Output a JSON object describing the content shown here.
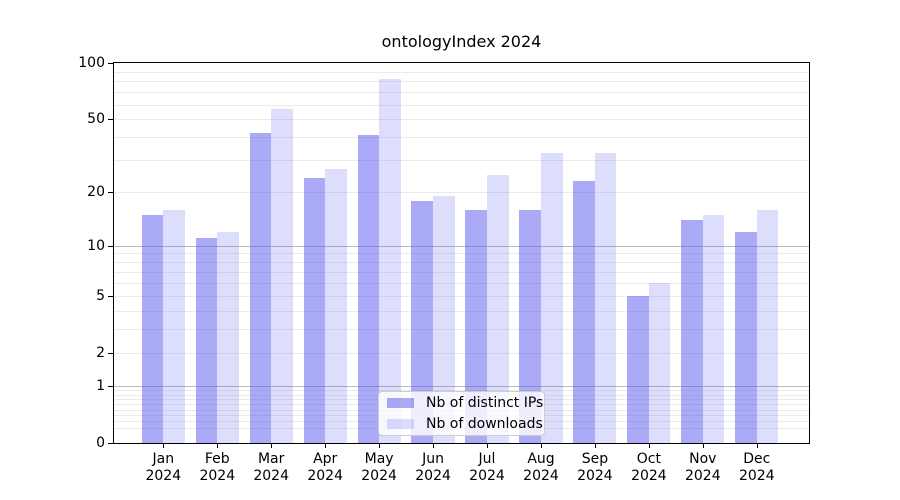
{
  "chart_data": {
    "type": "bar",
    "title": "ontologyIndex 2024",
    "categories": [
      "Jan",
      "Feb",
      "Mar",
      "Apr",
      "May",
      "Jun",
      "Jul",
      "Aug",
      "Sep",
      "Oct",
      "Nov",
      "Dec"
    ],
    "year_label": "2024",
    "series": [
      {
        "key": "distinct_ips",
        "name": "Nb of distinct IPs",
        "color": "rgba(85,85,238,0.5)",
        "color_hex_on_white": "#aaaaf6",
        "values": [
          15,
          11,
          42,
          24,
          41,
          18,
          16,
          16,
          23,
          5,
          14,
          12
        ]
      },
      {
        "key": "downloads",
        "name": "Nb of downloads",
        "color": "rgba(85,85,238,0.2)",
        "color_hex_on_white": "#ddddfb",
        "values": [
          16,
          12,
          57,
          27,
          82,
          19,
          25,
          33,
          33,
          6,
          15,
          16
        ]
      }
    ],
    "y_axis": {
      "scale": "log1p",
      "lim": [
        0,
        100
      ],
      "tick_labels": [
        "0",
        "1",
        "2",
        "5",
        "10",
        "20",
        "50",
        "100"
      ],
      "ticks": [
        0,
        1,
        2,
        5,
        10,
        20,
        50,
        100
      ],
      "major_grid_values": [
        1,
        10
      ],
      "light_grid_values": [
        2,
        5,
        20,
        50
      ],
      "minor_grid_values": [
        0.2,
        0.3,
        0.4,
        0.5,
        0.6,
        0.7,
        0.8,
        0.9,
        3,
        4,
        6,
        7,
        8,
        9,
        30,
        40,
        60,
        70,
        80,
        90
      ]
    },
    "grid": "horizontal",
    "legend_position": "lower center"
  }
}
